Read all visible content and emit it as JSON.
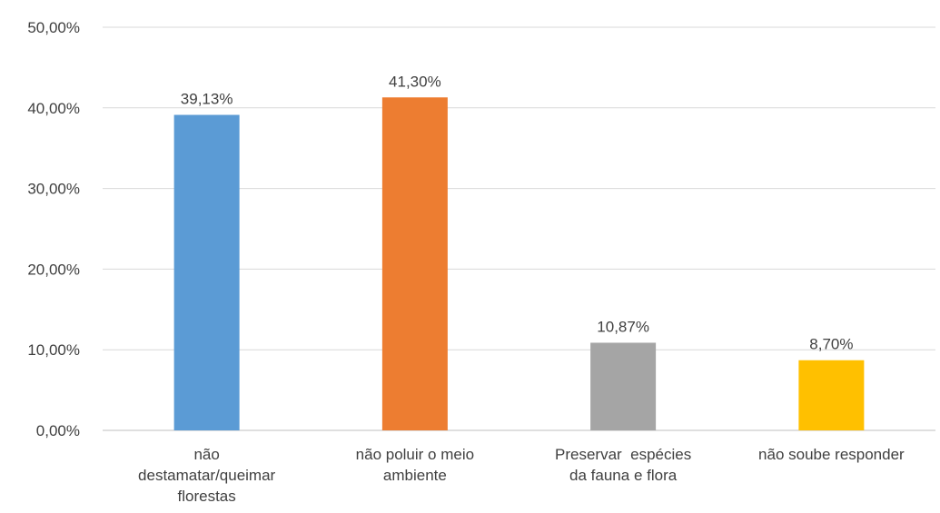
{
  "chart_data": {
    "type": "bar",
    "title": "",
    "xlabel": "",
    "ylabel": "",
    "categories": [
      [
        "não",
        "destamatar/queimar",
        "florestas"
      ],
      [
        "não poluir o meio",
        "ambiente"
      ],
      [
        "Preservar  espécies",
        "da fauna e flora"
      ],
      [
        "não soube responder"
      ]
    ],
    "values": [
      39.13,
      41.3,
      10.87,
      8.7
    ],
    "value_labels": [
      "39,13%",
      "41,30%",
      "10,87%",
      "8,70%"
    ],
    "bar_colors": [
      "#5b9bd5",
      "#ed7d31",
      "#a5a5a5",
      "#ffc000"
    ],
    "ylim": [
      0,
      50
    ],
    "yticks": [
      0,
      10,
      20,
      30,
      40,
      50
    ],
    "ytick_labels": [
      "0,00%",
      "10,00%",
      "20,00%",
      "30,00%",
      "40,00%",
      "50,00%"
    ],
    "grid": true,
    "legend": "none"
  }
}
